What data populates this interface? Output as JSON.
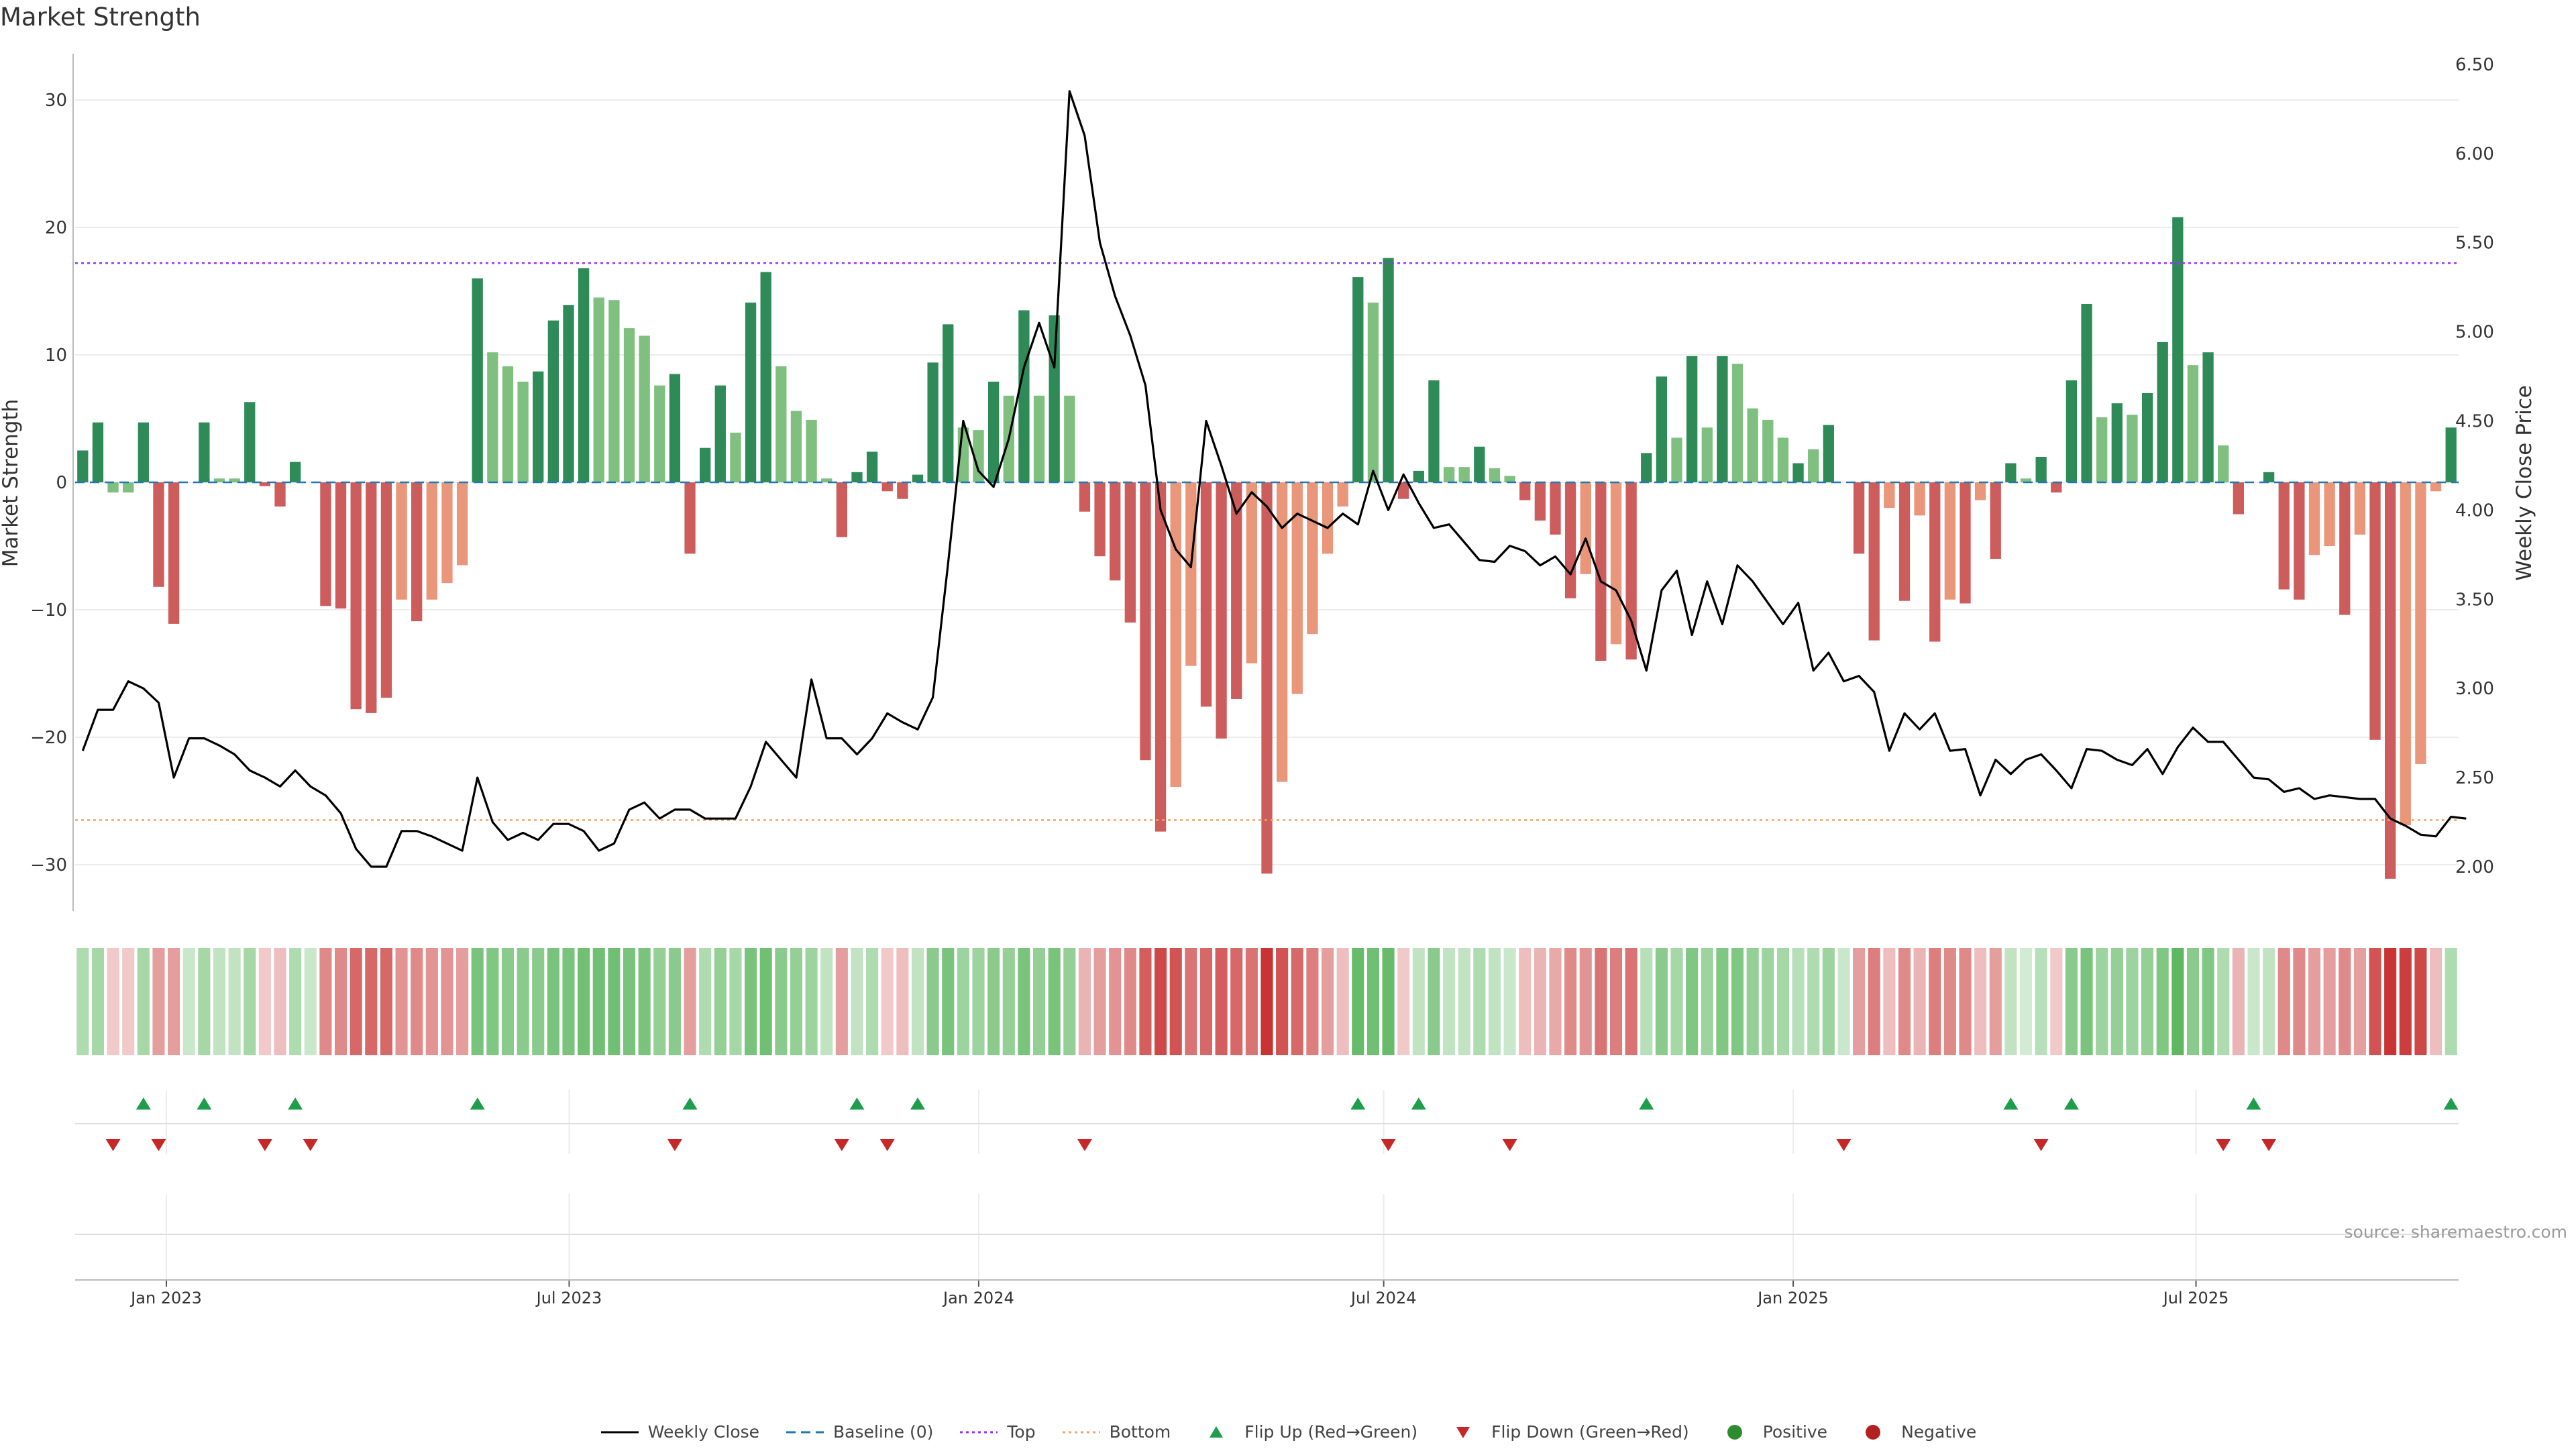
{
  "title": "Market Strength",
  "source": "source: sharemaestro.com",
  "colors": {
    "strong_pos": "#2e8b57",
    "pos": "#7fbf7f",
    "strong_neg": "#cd5c5c",
    "neg": "#e9967a",
    "price": "#000000",
    "baseline": "#1f77b4",
    "top": "#9b30ff",
    "bottom": "#f4a460",
    "flip_up": "#1e9e4a",
    "flip_down": "#c62828",
    "positive_dot": "#2e8b2e",
    "negative_dot": "#b22222"
  },
  "legend": [
    {
      "label": "Weekly Close",
      "kind": "line",
      "color": "#000000",
      "dash": ""
    },
    {
      "label": "Baseline (0)",
      "kind": "line",
      "color": "#1f77b4",
      "dash": "14,8"
    },
    {
      "label": "Top",
      "kind": "line",
      "color": "#9b30ff",
      "dash": "4,5"
    },
    {
      "label": "Bottom",
      "kind": "line",
      "color": "#f4a460",
      "dash": "4,5"
    },
    {
      "label": "Flip Up (Red→Green)",
      "kind": "up",
      "color": "#1e9e4a"
    },
    {
      "label": "Flip Down (Green→Red)",
      "kind": "down",
      "color": "#c62828"
    },
    {
      "label": "Positive",
      "kind": "dot",
      "color": "#2e8b2e"
    },
    {
      "label": "Negative",
      "kind": "dot",
      "color": "#b22222"
    }
  ],
  "chart_data": {
    "type": "bar",
    "title": "Market Strength",
    "ylabel_left": "Market Strength",
    "ylabel_right": "Weekly Close Price",
    "ylim_left": [
      -33.5,
      33.5
    ],
    "ylim_right": [
      1.93,
      6.6
    ],
    "yticks_left": [
      30,
      20,
      10,
      0,
      -10,
      -20,
      -30
    ],
    "ytick_labels_left": [
      "30",
      "20",
      "10",
      "0",
      "−10",
      "−20",
      "−30"
    ],
    "yticks_right": [
      6.5,
      6.0,
      5.5,
      5.0,
      4.5,
      4.0,
      3.5,
      3.0,
      2.5,
      2.0
    ],
    "ytick_labels_right": [
      "6.50",
      "6.00",
      "5.50",
      "5.00",
      "4.50",
      "4.00",
      "3.50",
      "3.00",
      "2.50",
      "2.00"
    ],
    "x_start": "2022-11-21",
    "x_end": "2025-10-27",
    "xticks": [
      {
        "date": "2023-01-01",
        "label": "Jan 2023"
      },
      {
        "date": "2023-07-01",
        "label": "Jul 2023"
      },
      {
        "date": "2024-01-01",
        "label": "Jan 2024"
      },
      {
        "date": "2024-07-01",
        "label": "Jul 2024"
      },
      {
        "date": "2025-01-01",
        "label": "Jan 2025"
      },
      {
        "date": "2025-07-01",
        "label": "Jul 2025"
      }
    ],
    "top_line": 17.2,
    "bottom_line": -26.5,
    "grid": true,
    "legend_position": "bottom-center",
    "strength": [
      2.5,
      4.7,
      -0.8,
      -0.8,
      4.7,
      -8.2,
      -11.1,
      0,
      4.7,
      0.3,
      0.3,
      6.3,
      -0.3,
      -1.9,
      1.6,
      0,
      -9.7,
      -9.9,
      -17.8,
      -18.1,
      -16.9,
      -9.2,
      -10.9,
      -9.2,
      -7.9,
      -6.5,
      16.0,
      10.2,
      9.1,
      7.9,
      8.7,
      12.7,
      13.9,
      16.8,
      14.5,
      14.3,
      12.1,
      11.5,
      7.6,
      8.5,
      -5.6,
      2.7,
      7.6,
      3.9,
      14.1,
      16.5,
      9.1,
      5.6,
      4.9,
      0.3,
      -4.3,
      0.8,
      2.4,
      -0.7,
      -1.3,
      0.6,
      9.4,
      12.4,
      4.3,
      4.1,
      7.9,
      6.8,
      13.5,
      6.8,
      13.1,
      6.8,
      -2.3,
      -5.8,
      -7.7,
      -11.0,
      -21.8,
      -27.4,
      -23.9,
      -14.4,
      -17.6,
      -20.1,
      -17.0,
      -14.2,
      -30.7,
      -23.5,
      -16.6,
      -11.9,
      -5.6,
      -1.9,
      16.1,
      14.1,
      17.6,
      -1.3,
      0.9,
      8.0,
      1.2,
      1.2,
      2.8,
      1.1,
      0.5,
      -1.4,
      -3.0,
      -4.1,
      -9.1,
      -7.2,
      -14.0,
      -12.7,
      -13.9,
      2.3,
      8.3,
      3.5,
      9.9,
      4.3,
      9.9,
      9.3,
      5.8,
      4.9,
      3.5,
      1.5,
      2.6,
      4.5,
      0,
      -5.6,
      -12.4,
      -2.0,
      -9.3,
      -2.6,
      -12.5,
      -9.2,
      -9.5,
      -1.4,
      -6.0,
      1.5,
      0.3,
      2.0,
      -0.8,
      8.0,
      14.0,
      5.1,
      6.2,
      5.3,
      7.0,
      11.0,
      20.8,
      9.2,
      10.2,
      2.9,
      -2.5,
      0,
      0.8,
      -8.4,
      -9.2,
      -5.7,
      -5.0,
      -10.4,
      -4.1,
      -20.2,
      -31.1,
      -26.9,
      -22.1,
      -0.7,
      4.3
    ],
    "bar_categories": [
      1,
      1,
      2,
      2,
      1,
      3,
      3,
      0,
      1,
      2,
      2,
      1,
      3,
      3,
      1,
      0,
      3,
      3,
      3,
      3,
      3,
      4,
      3,
      4,
      4,
      4,
      1,
      2,
      2,
      2,
      1,
      1,
      1,
      1,
      2,
      2,
      2,
      2,
      2,
      1,
      3,
      1,
      1,
      2,
      1,
      1,
      2,
      2,
      2,
      2,
      3,
      1,
      1,
      3,
      3,
      1,
      1,
      1,
      2,
      2,
      1,
      2,
      1,
      2,
      1,
      2,
      3,
      3,
      3,
      3,
      3,
      3,
      4,
      4,
      3,
      3,
      3,
      4,
      3,
      4,
      4,
      4,
      4,
      4,
      1,
      2,
      1,
      3,
      1,
      1,
      2,
      2,
      1,
      2,
      2,
      3,
      3,
      3,
      3,
      4,
      3,
      4,
      3,
      1,
      1,
      2,
      1,
      2,
      1,
      2,
      2,
      2,
      2,
      1,
      2,
      1,
      0,
      3,
      3,
      4,
      3,
      4,
      3,
      4,
      3,
      4,
      3,
      1,
      2,
      1,
      3,
      1,
      1,
      2,
      1,
      2,
      1,
      1,
      1,
      2,
      1,
      2,
      3,
      0,
      1,
      3,
      3,
      4,
      4,
      3,
      4,
      3,
      3,
      4,
      4,
      4,
      1
    ],
    "heat_intensity": [
      0.45,
      0.5,
      0.25,
      0.25,
      0.5,
      0.45,
      0.45,
      0.3,
      0.5,
      0.35,
      0.35,
      0.5,
      0.25,
      0.3,
      0.45,
      0.3,
      0.55,
      0.55,
      0.7,
      0.7,
      0.7,
      0.5,
      0.55,
      0.5,
      0.5,
      0.45,
      0.75,
      0.7,
      0.65,
      0.65,
      0.65,
      0.75,
      0.75,
      0.8,
      0.8,
      0.8,
      0.75,
      0.75,
      0.6,
      0.65,
      0.45,
      0.45,
      0.6,
      0.5,
      0.75,
      0.8,
      0.65,
      0.6,
      0.55,
      0.35,
      0.45,
      0.35,
      0.45,
      0.25,
      0.3,
      0.35,
      0.65,
      0.75,
      0.55,
      0.55,
      0.65,
      0.6,
      0.75,
      0.6,
      0.75,
      0.6,
      0.35,
      0.45,
      0.5,
      0.55,
      0.75,
      0.85,
      0.8,
      0.65,
      0.7,
      0.75,
      0.7,
      0.65,
      0.95,
      0.8,
      0.7,
      0.6,
      0.45,
      0.3,
      0.85,
      0.8,
      0.85,
      0.25,
      0.35,
      0.65,
      0.35,
      0.35,
      0.45,
      0.35,
      0.3,
      0.3,
      0.35,
      0.4,
      0.55,
      0.5,
      0.65,
      0.6,
      0.65,
      0.4,
      0.65,
      0.5,
      0.7,
      0.55,
      0.7,
      0.7,
      0.6,
      0.55,
      0.5,
      0.4,
      0.45,
      0.55,
      0.3,
      0.45,
      0.6,
      0.3,
      0.55,
      0.35,
      0.6,
      0.55,
      0.55,
      0.3,
      0.45,
      0.35,
      0.25,
      0.4,
      0.25,
      0.65,
      0.75,
      0.55,
      0.6,
      0.55,
      0.6,
      0.7,
      0.9,
      0.65,
      0.7,
      0.45,
      0.35,
      0.3,
      0.35,
      0.55,
      0.55,
      0.45,
      0.45,
      0.55,
      0.45,
      0.8,
      0.95,
      0.9,
      0.85,
      0.3,
      0.45
    ],
    "price": [
      2.65,
      2.88,
      2.88,
      3.04,
      3.0,
      2.92,
      2.5,
      2.72,
      2.72,
      2.68,
      2.63,
      2.54,
      2.5,
      2.45,
      2.54,
      2.45,
      2.4,
      2.3,
      2.1,
      2.0,
      2.0,
      2.2,
      2.2,
      2.17,
      2.13,
      2.09,
      2.5,
      2.25,
      2.15,
      2.19,
      2.15,
      2.24,
      2.24,
      2.2,
      2.09,
      2.13,
      2.32,
      2.36,
      2.27,
      2.32,
      2.32,
      2.27,
      2.27,
      2.27,
      2.45,
      2.7,
      2.6,
      2.5,
      3.05,
      2.72,
      2.72,
      2.63,
      2.72,
      2.86,
      2.81,
      2.77,
      2.95,
      3.7,
      4.5,
      4.22,
      4.13,
      4.4,
      4.8,
      5.05,
      4.8,
      6.35,
      6.1,
      5.5,
      5.2,
      4.98,
      4.7,
      4.0,
      3.78,
      3.68,
      4.5,
      4.25,
      3.98,
      4.1,
      4.02,
      3.9,
      3.98,
      3.94,
      3.9,
      3.98,
      3.92,
      4.22,
      4.0,
      4.2,
      4.04,
      3.9,
      3.92,
      3.82,
      3.72,
      3.71,
      3.8,
      3.77,
      3.69,
      3.74,
      3.64,
      3.84,
      3.6,
      3.55,
      3.38,
      3.1,
      3.55,
      3.66,
      3.3,
      3.6,
      3.36,
      3.69,
      3.6,
      3.48,
      3.36,
      3.48,
      3.1,
      3.2,
      3.04,
      3.07,
      2.98,
      2.65,
      2.86,
      2.77,
      2.86,
      2.65,
      2.66,
      2.4,
      2.6,
      2.52,
      2.6,
      2.63,
      2.54,
      2.44,
      2.66,
      2.65,
      2.6,
      2.57,
      2.66,
      2.52,
      2.67,
      2.78,
      2.7,
      2.7,
      2.6,
      2.5,
      2.49,
      2.42,
      2.44,
      2.38,
      2.4,
      2.39,
      2.38,
      2.38,
      2.27,
      2.23,
      2.18,
      2.17,
      2.28,
      2.27
    ],
    "flip_up_index": [
      4,
      8,
      14,
      26,
      40,
      51,
      55,
      84,
      88,
      103,
      127,
      131,
      143,
      156
    ],
    "flip_down_index": [
      2,
      5,
      12,
      15,
      39,
      50,
      53,
      66,
      86,
      94,
      116,
      129,
      141,
      144
    ]
  }
}
